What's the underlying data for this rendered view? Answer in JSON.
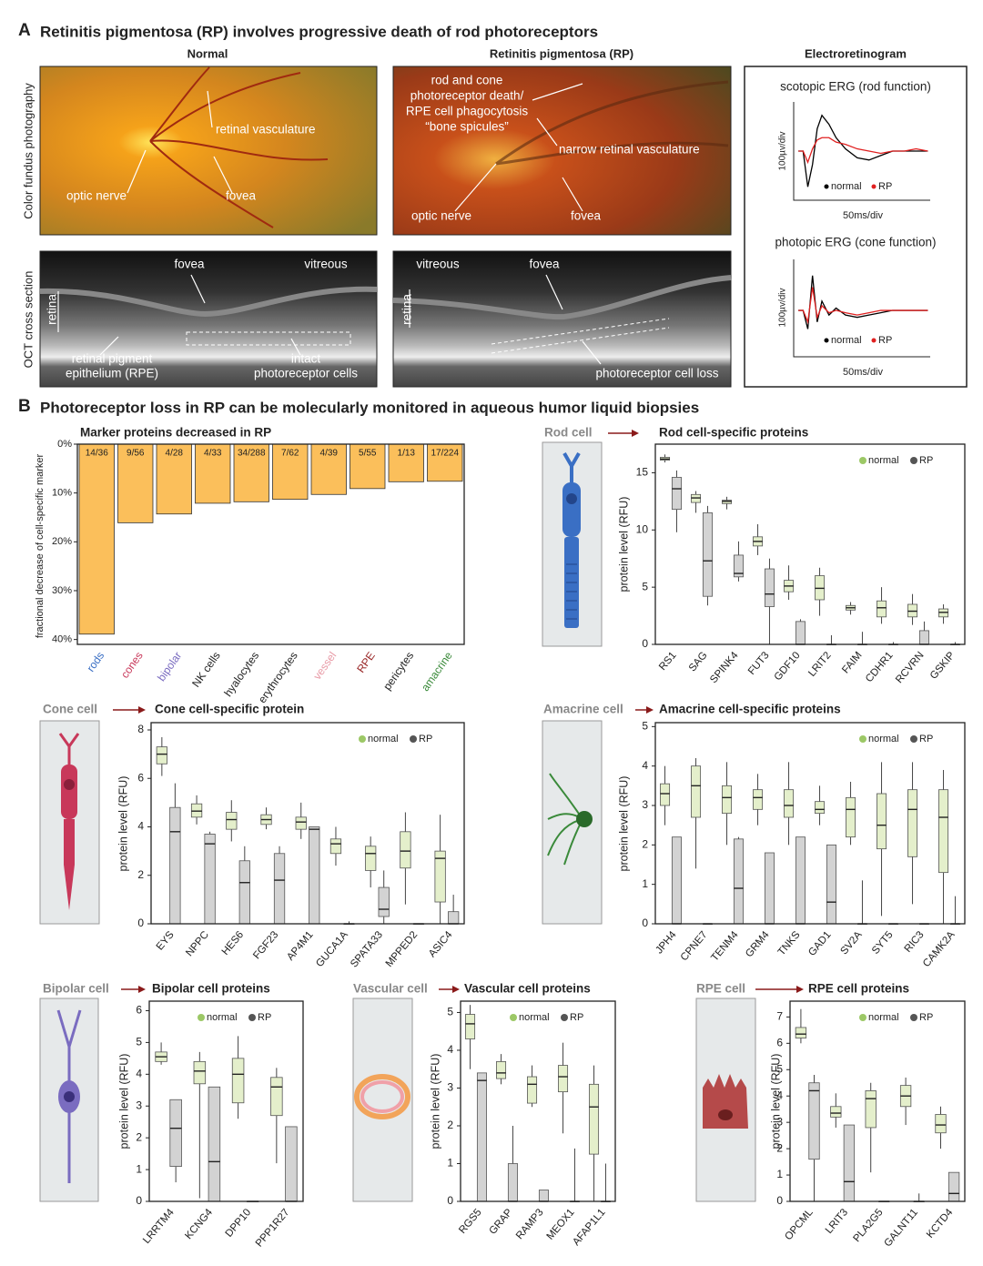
{
  "panel_a": {
    "label": "A",
    "title": "Retinitis pigmentosa (RP) involves progressive death of rod photoreceptors",
    "col_normal": "Normal",
    "col_rp": "Retinitis pigmentosa (RP)",
    "col_erg": "Electroretinogram",
    "row_fundus": "Color fundus photography",
    "row_oct": "OCT cross section",
    "fundus_normal": [
      "retinal vasculature",
      "optic nerve",
      "fovea"
    ],
    "fundus_rp": [
      "rod and cone",
      "photoreceptor death/",
      "RPE cell phagocytosis",
      "“bone spicules”",
      "narrow retinal vasculature",
      "optic nerve",
      "fovea"
    ],
    "oct_normal": [
      "fovea",
      "vitreous",
      "retina",
      "retinal pigment",
      "epithelium (RPE)",
      "intact",
      "photoreceptor cells"
    ],
    "oct_rp": [
      "vitreous",
      "fovea",
      "retina",
      "photoreceptor cell loss"
    ]
  },
  "panel_b": {
    "label": "B",
    "title": "Photoreceptor loss in RP can be molecularly monitored in aqueous humor liquid biopsies"
  },
  "chart_data": [
    {
      "type": "line",
      "title": "scotopic ERG (rod function)",
      "xlabel": "50ms/div",
      "ylabel": "100µv/div",
      "x": [
        0,
        0.2,
        0.4,
        0.6,
        0.8,
        1.0,
        1.3,
        1.6,
        2.0,
        2.5,
        3.0,
        3.5,
        4.0,
        4.5,
        5.0,
        5.5
      ],
      "xlim": [
        -0.2,
        5.6
      ],
      "ylim": [
        -2.2,
        2.2
      ],
      "series": [
        {
          "name": "normal",
          "color": "#000000",
          "values": [
            0,
            0,
            -1.6,
            -0.6,
            1.0,
            1.6,
            1.2,
            0.6,
            0.1,
            -0.3,
            -0.4,
            -0.2,
            0,
            0,
            0,
            0
          ]
        },
        {
          "name": "RP",
          "color": "#e02020",
          "values": [
            0,
            0,
            -0.5,
            0.1,
            0.5,
            0.6,
            0.6,
            0.4,
            0.3,
            0.1,
            0,
            -0.1,
            0,
            0,
            0.1,
            0
          ]
        }
      ]
    },
    {
      "type": "line",
      "title": "photopic ERG (cone function)",
      "xlabel": "50ms/div",
      "ylabel": "100µv/div",
      "x": [
        0,
        0.2,
        0.4,
        0.6,
        0.8,
        1.0,
        1.3,
        1.6,
        2.0,
        2.5,
        3.0,
        3.5,
        4.0,
        4.5,
        5.0,
        5.5
      ],
      "xlim": [
        -0.2,
        5.6
      ],
      "ylim": [
        -2.0,
        2.2
      ],
      "series": [
        {
          "name": "normal",
          "color": "#000000",
          "values": [
            0,
            0,
            -0.8,
            1.5,
            -0.5,
            0.4,
            -0.2,
            0.1,
            -0.2,
            -0.3,
            -0.2,
            -0.1,
            0,
            0,
            0,
            0
          ]
        },
        {
          "name": "RP",
          "color": "#e02020",
          "values": [
            0,
            0,
            -0.5,
            1.0,
            -0.3,
            0.2,
            -0.1,
            0,
            -0.1,
            -0.2,
            -0.1,
            0,
            0,
            0,
            0,
            0
          ]
        }
      ]
    },
    {
      "type": "bar",
      "title": "Marker proteins decreased in RP",
      "ylabel": "fractional decrease of cell-specific marker",
      "categories": [
        "rods",
        "cones",
        "bipolar",
        "NK cells",
        "hyalocytes",
        "erythrocytes",
        "vessel",
        "RPE",
        "pericytes",
        "amacrine"
      ],
      "category_colors": [
        "#3a6fc4",
        "#c8385a",
        "#7a6cc0",
        "#222222",
        "#222222",
        "#222222",
        "#e89aa6",
        "#9b2a2a",
        "#222222",
        "#3a8a3a"
      ],
      "values": [
        38.9,
        16.1,
        14.3,
        12.1,
        11.8,
        11.3,
        10.3,
        9.1,
        7.7,
        7.6
      ],
      "value_labels": [
        "14/36",
        "9/56",
        "4/28",
        "4/33",
        "34/288",
        "7/62",
        "4/39",
        "5/55",
        "1/13",
        "17/224"
      ],
      "color": "#fbbf5b",
      "ylim": [
        0,
        41
      ],
      "yticks": [
        {
          "value": 0,
          "label": "0%"
        },
        {
          "value": 10,
          "label": "10%"
        },
        {
          "value": 20,
          "label": "20%"
        },
        {
          "value": 30,
          "label": "30%"
        },
        {
          "value": 40,
          "label": "40%"
        }
      ],
      "y_inverted": true
    },
    {
      "type": "box",
      "cell_label": "Rod cell",
      "title": "Rod cell-specific proteins",
      "ylabel": "protein level (RFU)",
      "categories": [
        "RS1",
        "SAG",
        "SPINK4",
        "FUT3",
        "GDF10",
        "LRIT2",
        "FAIM",
        "CDHR1",
        "RCVRN",
        "GSKIP"
      ],
      "ylim": [
        0,
        17.5
      ],
      "yticks": [
        0,
        5,
        10,
        15
      ],
      "series": [
        {
          "name": "normal",
          "color": "#9cc866",
          "fill": "#e4efcb",
          "min": [
            15.9,
            11.5,
            11.8,
            7.8,
            3.9,
            2.5,
            2.6,
            1.8,
            1.7,
            1.8
          ],
          "q1": [
            16.1,
            12.4,
            12.3,
            8.6,
            4.6,
            3.9,
            3.0,
            2.4,
            2.4,
            2.4
          ],
          "median": [
            16.2,
            12.8,
            12.5,
            9.0,
            5.1,
            4.9,
            3.2,
            3.2,
            2.9,
            2.8
          ],
          "q3": [
            16.35,
            13.1,
            12.6,
            9.4,
            5.6,
            6.0,
            3.4,
            3.8,
            3.5,
            3.1
          ],
          "max": [
            16.6,
            13.4,
            12.9,
            10.5,
            6.9,
            6.7,
            3.7,
            5.0,
            4.4,
            3.5
          ]
        },
        {
          "name": "RP",
          "color": "#555555",
          "fill": "#d3d3d3",
          "min": [
            9.8,
            3.4,
            5.5,
            0,
            0,
            0,
            0,
            0,
            0,
            0
          ],
          "q1": [
            11.8,
            4.2,
            5.9,
            3.3,
            0,
            0,
            0,
            0,
            0,
            0
          ],
          "median": [
            13.6,
            7.3,
            6.2,
            4.4,
            0,
            0,
            0,
            0,
            0,
            0
          ],
          "q3": [
            14.6,
            11.5,
            7.8,
            6.6,
            2.0,
            0,
            0,
            0,
            1.2,
            0
          ],
          "max": [
            15.2,
            12.1,
            9.0,
            7.5,
            2.2,
            0.8,
            1.1,
            0.2,
            2.0,
            0.2
          ]
        }
      ]
    },
    {
      "type": "box",
      "cell_label": "Cone cell",
      "title": "Cone cell-specific protein",
      "ylabel": "protein level (RFU)",
      "categories": [
        "EYS",
        "NPPC",
        "HES6",
        "FGF23",
        "AP4M1",
        "GUCA1A",
        "SPATA33",
        "MPPED2",
        "ASIC4"
      ],
      "ylim": [
        0,
        8.3
      ],
      "yticks": [
        0,
        2,
        4,
        6,
        8
      ],
      "series": [
        {
          "name": "normal",
          "color": "#9cc866",
          "fill": "#e4efcb",
          "min": [
            6.1,
            4.1,
            3.4,
            3.9,
            3.5,
            2.4,
            1.5,
            0.8,
            0
          ],
          "q1": [
            6.6,
            4.4,
            3.9,
            4.1,
            3.9,
            2.9,
            2.2,
            2.3,
            0.9
          ],
          "median": [
            7.0,
            4.65,
            4.3,
            4.3,
            4.2,
            3.3,
            2.9,
            3.0,
            2.7
          ],
          "q3": [
            7.3,
            4.95,
            4.6,
            4.5,
            4.4,
            3.5,
            3.2,
            3.8,
            3.0
          ],
          "max": [
            7.7,
            5.3,
            5.1,
            4.8,
            5.0,
            4.0,
            3.6,
            4.6,
            4.5
          ]
        },
        {
          "name": "RP",
          "color": "#555555",
          "fill": "#d3d3d3",
          "min": [
            0,
            0,
            0,
            0,
            0,
            0,
            0,
            0,
            0
          ],
          "q1": [
            0,
            0,
            0,
            0,
            0,
            0,
            0.3,
            0,
            0
          ],
          "median": [
            3.8,
            3.3,
            1.7,
            1.8,
            3.9,
            0,
            0.6,
            0,
            0
          ],
          "q3": [
            4.8,
            3.7,
            2.6,
            2.9,
            4.0,
            0,
            1.5,
            0,
            0.5
          ],
          "max": [
            5.8,
            3.8,
            3.2,
            3.2,
            4.0,
            0.1,
            2.2,
            0,
            1.2
          ]
        }
      ]
    },
    {
      "type": "box",
      "cell_label": "Amacrine cell",
      "title": "Amacrine cell-specific proteins",
      "ylabel": "protein level (RFU)",
      "categories": [
        "JPH4",
        "CPNE7",
        "TENM4",
        "GRM4",
        "TNKS",
        "GAD1",
        "SV2A",
        "SYT5",
        "RIC3",
        "CAMK2A"
      ],
      "ylim": [
        0,
        5.1
      ],
      "yticks": [
        0,
        1,
        2,
        3,
        4,
        5
      ],
      "series": [
        {
          "name": "normal",
          "color": "#9cc866",
          "fill": "#e4efcb",
          "min": [
            2.5,
            1.4,
            2.0,
            2.5,
            2.0,
            2.5,
            2.0,
            0.2,
            0.5,
            0
          ],
          "q1": [
            3.0,
            2.7,
            2.8,
            2.9,
            2.7,
            2.8,
            2.2,
            1.9,
            1.7,
            1.3
          ],
          "median": [
            3.3,
            3.5,
            3.2,
            3.2,
            3.0,
            2.9,
            2.9,
            2.5,
            2.9,
            2.7
          ],
          "q3": [
            3.55,
            4.0,
            3.5,
            3.4,
            3.4,
            3.1,
            3.2,
            3.3,
            3.4,
            3.4
          ],
          "max": [
            4.0,
            4.2,
            4.1,
            3.8,
            4.1,
            3.5,
            3.6,
            4.1,
            4.1,
            3.9
          ]
        },
        {
          "name": "RP",
          "color": "#555555",
          "fill": "#d3d3d3",
          "min": [
            0,
            0,
            0,
            0,
            0,
            0,
            0,
            0,
            0,
            0
          ],
          "q1": [
            0,
            0,
            0,
            0,
            0,
            0,
            0,
            0,
            0,
            0
          ],
          "median": [
            0,
            0,
            0.9,
            0,
            0,
            0.55,
            0,
            0,
            0,
            0
          ],
          "q3": [
            2.2,
            0,
            2.15,
            1.8,
            2.2,
            2.0,
            0,
            0,
            0,
            0
          ],
          "max": [
            2.2,
            0,
            2.2,
            1.8,
            2.2,
            2.0,
            1.1,
            0,
            0,
            0.7
          ]
        }
      ]
    },
    {
      "type": "box",
      "cell_label": "Bipolar cell",
      "title": "Bipolar cell proteins",
      "ylabel": "protein level (RFU)",
      "categories": [
        "LRRTM4",
        "KCNG4",
        "DPP10",
        "PPP1R27"
      ],
      "ylim": [
        0,
        6.3
      ],
      "yticks": [
        0,
        1,
        2,
        3,
        4,
        5,
        6
      ],
      "series": [
        {
          "name": "normal",
          "color": "#9cc866",
          "fill": "#e4efcb",
          "min": [
            4.3,
            0.1,
            2.6,
            1.2
          ],
          "q1": [
            4.4,
            3.7,
            3.1,
            2.7
          ],
          "median": [
            4.55,
            4.1,
            4.0,
            3.6
          ],
          "q3": [
            4.7,
            4.4,
            4.5,
            3.9
          ],
          "max": [
            5.0,
            4.7,
            5.2,
            4.2
          ]
        },
        {
          "name": "RP",
          "color": "#555555",
          "fill": "#d3d3d3",
          "min": [
            0.6,
            0,
            0,
            0
          ],
          "q1": [
            1.1,
            0,
            0,
            0
          ],
          "median": [
            2.3,
            1.25,
            0,
            0
          ],
          "q3": [
            3.2,
            3.6,
            0,
            2.35
          ],
          "max": [
            3.2,
            3.6,
            0,
            2.35
          ]
        }
      ]
    },
    {
      "type": "box",
      "cell_label": "Vascular cell",
      "title": "Vascular cell proteins",
      "ylabel": "protein level (RFU)",
      "categories": [
        "RGS5",
        "GRAP",
        "RAMP3",
        "MEOX1",
        "AFAP1L1"
      ],
      "ylim": [
        0,
        5.3
      ],
      "yticks": [
        0,
        1,
        2,
        3,
        4,
        5
      ],
      "series": [
        {
          "name": "normal",
          "color": "#9cc866",
          "fill": "#e4efcb",
          "min": [
            3.5,
            3.1,
            2.5,
            1.8,
            0
          ],
          "q1": [
            4.3,
            3.25,
            2.6,
            2.9,
            1.25
          ],
          "median": [
            4.7,
            3.4,
            3.1,
            3.3,
            2.5
          ],
          "q3": [
            4.95,
            3.7,
            3.3,
            3.6,
            3.1
          ],
          "max": [
            5.2,
            3.9,
            3.6,
            4.2,
            3.6
          ]
        },
        {
          "name": "RP",
          "color": "#555555",
          "fill": "#d3d3d3",
          "min": [
            0,
            0,
            0,
            0,
            0
          ],
          "q1": [
            0,
            0,
            0,
            0,
            0
          ],
          "median": [
            3.2,
            0,
            0,
            0,
            0
          ],
          "q3": [
            3.4,
            1.0,
            0.3,
            0,
            0
          ],
          "max": [
            3.4,
            2.0,
            0.3,
            1.4,
            1.0
          ]
        }
      ]
    },
    {
      "type": "box",
      "cell_label": "RPE cell",
      "title": "RPE cell proteins",
      "ylabel": "protein level (RFU)",
      "categories": [
        "OPCML",
        "LRIT3",
        "PLA2G5",
        "GALNT11",
        "KCTD4"
      ],
      "ylim": [
        0,
        7.6
      ],
      "yticks": [
        0,
        1,
        2,
        3,
        4,
        5,
        6,
        7
      ],
      "series": [
        {
          "name": "normal",
          "color": "#9cc866",
          "fill": "#e4efcb",
          "min": [
            6.0,
            2.8,
            1.1,
            2.9,
            2.0
          ],
          "q1": [
            6.2,
            3.2,
            2.8,
            3.6,
            2.6
          ],
          "median": [
            6.35,
            3.35,
            3.9,
            4.0,
            2.9
          ],
          "q3": [
            6.6,
            3.6,
            4.2,
            4.4,
            3.3
          ],
          "max": [
            7.3,
            4.1,
            4.5,
            4.7,
            3.6
          ]
        },
        {
          "name": "RP",
          "color": "#555555",
          "fill": "#d3d3d3",
          "min": [
            0,
            0,
            0,
            0,
            0
          ],
          "q1": [
            1.6,
            0,
            0,
            0,
            0
          ],
          "median": [
            4.2,
            0.75,
            0,
            0,
            0.3
          ],
          "q3": [
            4.5,
            2.9,
            0,
            0,
            1.1
          ],
          "max": [
            4.8,
            2.9,
            0,
            0.3,
            1.1
          ]
        }
      ]
    }
  ]
}
